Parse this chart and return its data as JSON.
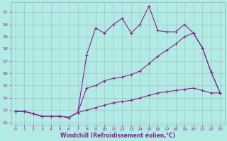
{
  "xlabel": "Windchill (Refroidissement éolien,°C)",
  "bg_color": "#b2ebe4",
  "line_color": "#882288",
  "grid_color": "#99aacc",
  "xmin": -0.5,
  "xmax": 23.5,
  "ymin": 11.8,
  "ymax": 21.8,
  "yticks": [
    12,
    13,
    14,
    15,
    16,
    17,
    18,
    19,
    20,
    21
  ],
  "xticks": [
    0,
    1,
    2,
    3,
    4,
    5,
    6,
    7,
    8,
    9,
    10,
    11,
    12,
    13,
    14,
    15,
    16,
    17,
    18,
    19,
    20,
    21,
    22,
    23
  ],
  "line1_x": [
    0,
    1,
    2,
    3,
    4,
    5,
    6,
    7,
    8,
    9,
    10,
    11,
    12,
    13,
    14,
    15,
    16,
    17,
    18,
    19,
    20,
    21,
    22,
    23
  ],
  "line1_y": [
    12.9,
    12.9,
    12.7,
    12.5,
    12.5,
    12.5,
    12.4,
    12.8,
    17.5,
    19.7,
    19.3,
    20.0,
    20.5,
    19.3,
    20.0,
    21.5,
    19.5,
    19.4,
    19.4,
    20.0,
    19.3,
    18.1,
    16.1,
    14.4
  ],
  "line2_x": [
    0,
    1,
    2,
    3,
    4,
    5,
    6,
    7,
    8,
    9,
    10,
    11,
    12,
    13,
    14,
    15,
    16,
    17,
    18,
    19,
    20,
    21,
    22,
    23
  ],
  "line2_y": [
    12.9,
    12.9,
    12.7,
    12.5,
    12.5,
    12.5,
    12.4,
    12.8,
    14.8,
    15.0,
    15.4,
    15.6,
    15.7,
    15.9,
    16.2,
    16.8,
    17.4,
    17.9,
    18.4,
    19.0,
    19.3,
    18.1,
    16.1,
    14.4
  ],
  "line3_x": [
    0,
    1,
    2,
    3,
    4,
    5,
    6,
    7,
    8,
    9,
    10,
    11,
    12,
    13,
    14,
    15,
    16,
    17,
    18,
    19,
    20,
    21,
    22,
    23
  ],
  "line3_y": [
    12.9,
    12.9,
    12.7,
    12.5,
    12.5,
    12.5,
    12.4,
    12.8,
    13.0,
    13.2,
    13.4,
    13.6,
    13.7,
    13.8,
    14.0,
    14.2,
    14.4,
    14.5,
    14.6,
    14.7,
    14.8,
    14.6,
    14.4,
    14.4
  ]
}
